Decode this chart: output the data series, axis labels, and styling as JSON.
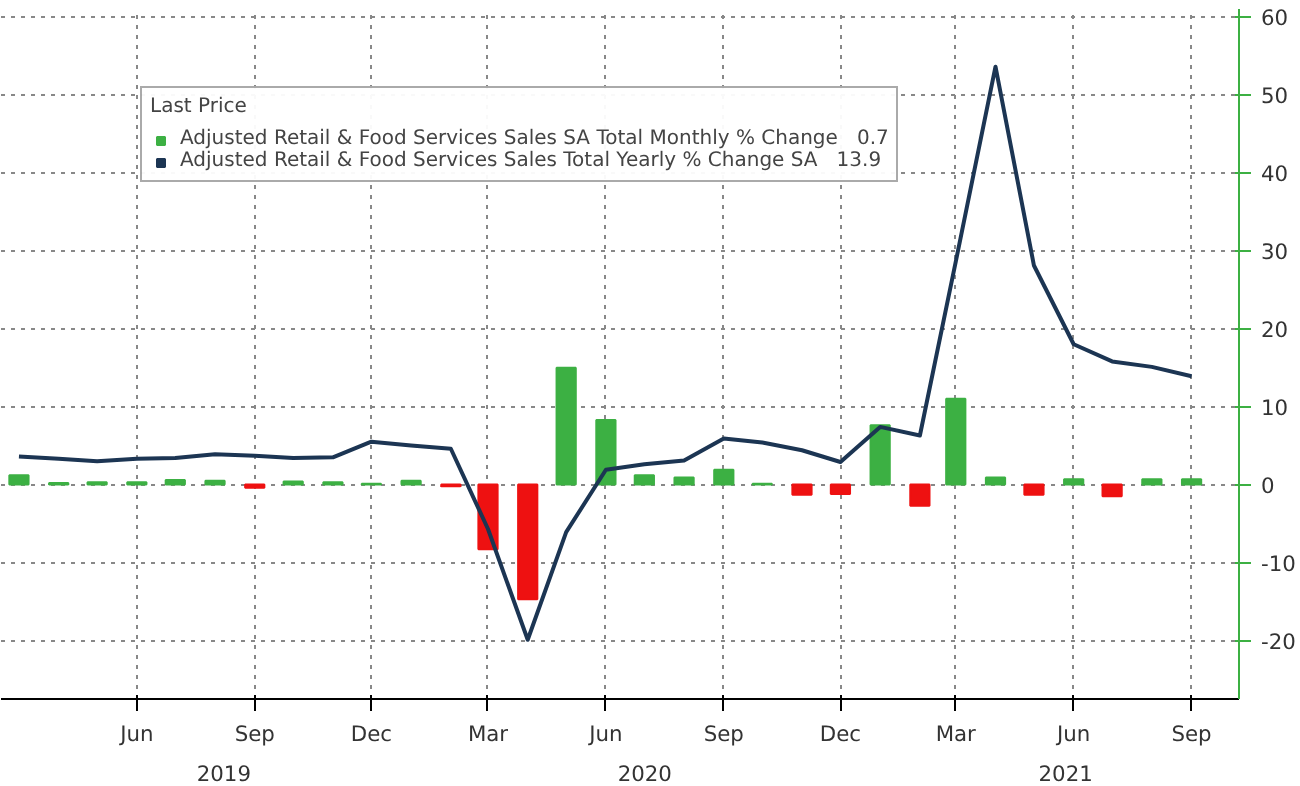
{
  "chart_data": {
    "type": "bar",
    "legend_title": "Last Price",
    "x": [
      "2019-03",
      "2019-04",
      "2019-05",
      "2019-06",
      "2019-07",
      "2019-08",
      "2019-09",
      "2019-10",
      "2019-11",
      "2019-12",
      "2020-01",
      "2020-02",
      "2020-03",
      "2020-04",
      "2020-05",
      "2020-06",
      "2020-07",
      "2020-08",
      "2020-09",
      "2020-10",
      "2020-11",
      "2020-12",
      "2021-01",
      "2021-02",
      "2021-03",
      "2021-04",
      "2021-05",
      "2021-06",
      "2021-07",
      "2021-08",
      "2021-09"
    ],
    "series": [
      {
        "name": "Adjusted Retail & Food Services Sales SA Total Monthly % Change   0.7",
        "color": "#3cb043",
        "colors": [
          "#3cb043",
          "#3cb043",
          "#3cb043",
          "#3cb043",
          "#3cb043",
          "#3cb043",
          "#ee1111",
          "#3cb043",
          "#3cb043",
          "#3cb043",
          "#3cb043",
          "#ee1111",
          "#ee1111",
          "#ee1111",
          "#3cb043",
          "#3cb043",
          "#3cb043",
          "#3cb043",
          "#3cb043",
          "#3cb043",
          "#ee1111",
          "#ee1111",
          "#3cb043",
          "#ee1111",
          "#3cb043",
          "#3cb043",
          "#ee1111",
          "#3cb043",
          "#ee1111",
          "#3cb043",
          "#3cb043"
        ],
        "values": [
          1.2,
          0.2,
          0.3,
          0.3,
          0.6,
          0.5,
          -0.4,
          0.4,
          0.3,
          0.1,
          0.5,
          -0.2,
          -8.3,
          -14.7,
          15,
          8.3,
          1.2,
          0.9,
          1.9,
          0.1,
          -1.3,
          -1.2,
          7.6,
          -2.7,
          11,
          0.9,
          -1.3,
          0.7,
          -1.5,
          0.7,
          0.7
        ]
      },
      {
        "name": "Adjusted Retail & Food Services Sales Total Yearly % Change SA   13.9",
        "type": "line",
        "color": "#1c3553",
        "values": [
          3.6,
          3.3,
          3.0,
          3.3,
          3.4,
          3.9,
          3.7,
          3.4,
          3.5,
          5.5,
          5.0,
          4.6,
          -5.7,
          -19.9,
          -6.1,
          1.9,
          2.6,
          3.1,
          5.9,
          5.4,
          4.4,
          2.9,
          7.4,
          6.3,
          28.6,
          53.6,
          28.1,
          18.0,
          15.8,
          15.1,
          13.9
        ]
      }
    ],
    "xlim": [
      "2019-02-15",
      "2021-10-08"
    ],
    "xticks": [
      {
        "value": "2019-06-01",
        "label": "Jun"
      },
      {
        "value": "2019-09-01",
        "label": "Sep"
      },
      {
        "value": "2019-12-01",
        "label": "Dec"
      },
      {
        "value": "2020-03-01",
        "label": "Mar"
      },
      {
        "value": "2020-06-01",
        "label": "Jun"
      },
      {
        "value": "2020-09-01",
        "label": "Sep"
      },
      {
        "value": "2020-12-01",
        "label": "Dec"
      },
      {
        "value": "2021-03-01",
        "label": "Mar"
      },
      {
        "value": "2021-06-01",
        "label": "Jun"
      },
      {
        "value": "2021-09-01",
        "label": "Sep"
      }
    ],
    "ylim": [
      -27.5,
      61
    ],
    "yticks": [
      -20,
      -10,
      0,
      10,
      20,
      30,
      40,
      50,
      60
    ],
    "annotations": [
      "2019",
      "2020",
      "2021"
    ],
    "grid": true,
    "legend": "top left",
    "line_style": "solid",
    "marker": "none"
  }
}
